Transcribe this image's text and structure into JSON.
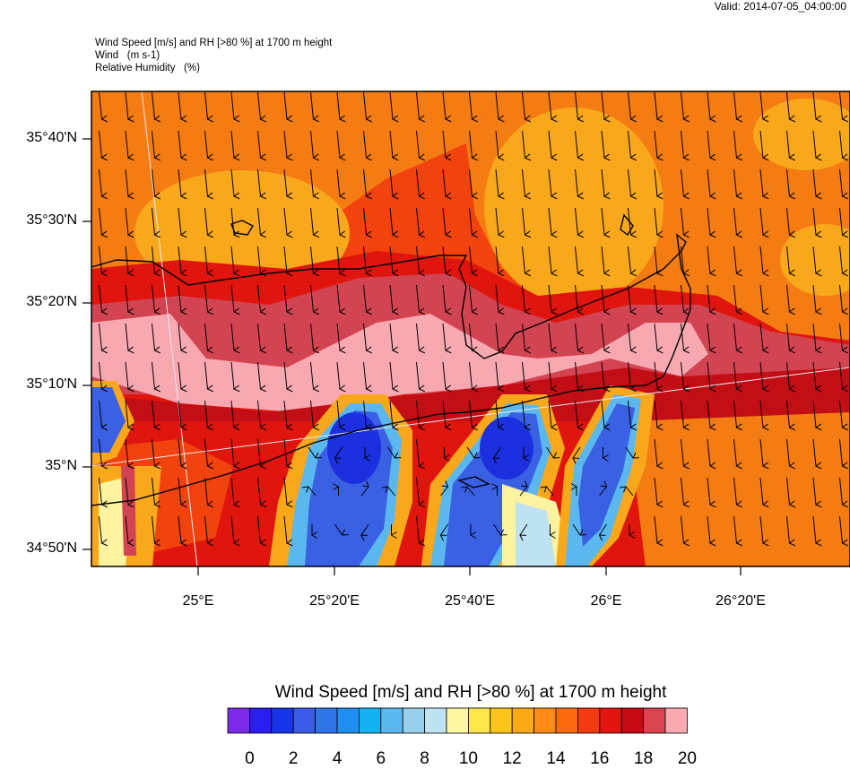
{
  "valid_label": "Valid: 2014-07-05_04:00:00",
  "header": {
    "line1": "Wind Speed [m/s] and RH [>80 %] at 1700 m height",
    "line2": "Wind   (m s-1)",
    "line3": "Relative Humidity   (%)"
  },
  "lat_labels": [
    "35°40'N",
    "35°30'N",
    "35°20'N",
    "35°10'N",
    "35°N",
    "34°50'N"
  ],
  "lon_labels": [
    "25°E",
    "25°20'E",
    "25°40'E",
    "26°E",
    "26°20'E"
  ],
  "legend": {
    "title": "Wind Speed [m/s] and RH [>80 %] at 1700 m height",
    "tick_labels": [
      "0",
      "2",
      "4",
      "6",
      "8",
      "10",
      "12",
      "14",
      "16",
      "18",
      "20"
    ],
    "colors": [
      "#7b2be8",
      "#2a1ff0",
      "#1734e8",
      "#3a5ce6",
      "#2f75ea",
      "#1e8ef0",
      "#14b2f2",
      "#5ab8ee",
      "#98cfea",
      "#bfe2f2",
      "#fff6a0",
      "#fce64a",
      "#fdc41c",
      "#fda816",
      "#fc8a14",
      "#fb6a10",
      "#f43a10",
      "#e41410",
      "#c80a14",
      "#d84450",
      "#f8aab0"
    ]
  },
  "field_colors": {
    "orange": "#f57c12",
    "light_orange": "#f9a81c",
    "red_orange": "#f2420e",
    "red": "#e0150e",
    "dark_red": "#c40e16",
    "rose": "#d24452",
    "pink": "#f7a8b0",
    "blue": "#3a60e4",
    "deep_blue": "#1c30e0",
    "light_blue": "#8ecbf0",
    "pale_yellow": "#fdf3a0"
  }
}
